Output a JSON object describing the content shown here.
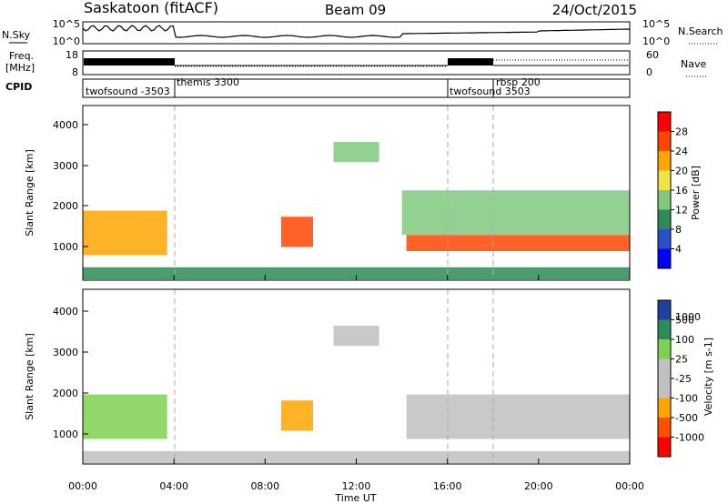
{
  "header": {
    "station": "Saskatoon (fitACF)",
    "beam": "Beam 09",
    "date": "24/Oct/2015"
  },
  "noise_panel": {
    "left_label": "N.Sky",
    "left_ticks": [
      "10^5",
      "10^0"
    ],
    "right_ticks": [
      "10^5",
      "10^0"
    ],
    "right_label": "N.Search"
  },
  "freq_panel": {
    "label_line1": "Freq.",
    "label_line2": "[MHz]",
    "left_ticks": [
      "18",
      "8"
    ],
    "right_ticks": [
      "60",
      "0"
    ],
    "right_label": "Nave"
  },
  "cpid_panel": {
    "label": "CPID",
    "segments": [
      {
        "start_hour": 0.0,
        "label": "twofsound -3503"
      },
      {
        "start_hour": 4.0,
        "label": "themis 3300"
      },
      {
        "start_hour": 16.0,
        "label": "twofsound 3503"
      },
      {
        "start_hour": 18.0,
        "label": "rbsp 200"
      }
    ]
  },
  "power_panel": {
    "ylabel": "Slant Range [km]",
    "yticks": [
      "1000",
      "2000",
      "3000",
      "4000"
    ],
    "colorbar_label": "Power [dB]",
    "colorbar_ticks": [
      "4",
      "8",
      "12",
      "16",
      "20",
      "24",
      "28"
    ],
    "colors": [
      "#0000ff",
      "#2850c8",
      "#2e8b57",
      "#7fc97f",
      "#f0e442",
      "#ffa500",
      "#ff4500",
      "#ff0000"
    ]
  },
  "velocity_panel": {
    "ylabel": "Slant Range [km]",
    "yticks": [
      "1000",
      "2000",
      "3000",
      "4000"
    ],
    "colorbar_label": "Velocity [m s-1]",
    "colorbar_ticks": [
      "1000",
      "500",
      "100",
      "25",
      "-25",
      "-100",
      "-500",
      "-1000"
    ],
    "colors": [
      "#2040a0",
      "#2e8b57",
      "#7fd04f",
      "#c0c0c0",
      "#c0c0c0",
      "#ffa500",
      "#ff5000",
      "#ff0000"
    ]
  },
  "xaxis": {
    "label": "Time UT",
    "ticks": [
      "00:00",
      "04:00",
      "08:00",
      "12:00",
      "16:00",
      "20:00",
      "00:00"
    ]
  },
  "chart_data": {
    "type": "heatmap",
    "x_range_hours": [
      0,
      24
    ],
    "y_range_km": [
      180,
      4500
    ],
    "power_regions": [
      {
        "t0": 0.0,
        "t1": 3.7,
        "r0": 800,
        "r1": 1900,
        "power_db": 22
      },
      {
        "t0": 8.7,
        "t1": 10.1,
        "r0": 1000,
        "r1": 1750,
        "power_db": 27
      },
      {
        "t0": 14.2,
        "t1": 24.0,
        "r0": 900,
        "r1": 1300,
        "power_db": 24
      },
      {
        "t0": 14.0,
        "t1": 24.0,
        "r0": 1300,
        "r1": 2400,
        "power_db": 12
      },
      {
        "t0": 11.0,
        "t1": 13.0,
        "r0": 3100,
        "r1": 3600,
        "power_db": 12
      },
      {
        "t0": 0.0,
        "t1": 24.0,
        "r0": 200,
        "r1": 500,
        "power_db": 8
      }
    ],
    "velocity_regions": [
      {
        "t0": 0.0,
        "t1": 3.7,
        "r0": 800,
        "r1": 1900,
        "velocity": 300
      },
      {
        "t0": 8.7,
        "t1": 10.1,
        "r0": 1000,
        "r1": 1750,
        "velocity": -60
      },
      {
        "t0": 14.2,
        "t1": 24.0,
        "r0": 800,
        "r1": 1900,
        "velocity": 0
      },
      {
        "t0": 11.0,
        "t1": 13.0,
        "r0": 3100,
        "r1": 3600,
        "velocity": 0
      },
      {
        "t0": 0.0,
        "t1": 24.0,
        "r0": 200,
        "r1": 500,
        "velocity": 0
      }
    ]
  }
}
